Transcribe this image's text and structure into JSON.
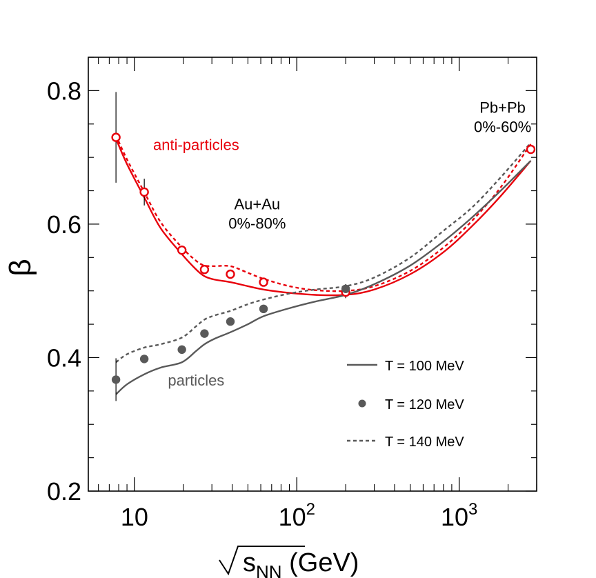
{
  "chart_data": {
    "type": "line",
    "x_scale": "log",
    "xlim": [
      5.2,
      3000
    ],
    "ylim": [
      0.2,
      0.85
    ],
    "xlabel_parts": {
      "root": "√",
      "s": "s",
      "sub": "NN",
      "unit": " (GeV)"
    },
    "ylabel": "β",
    "x_ticks": [
      {
        "value": 10,
        "label": "10",
        "sup": ""
      },
      {
        "value": 100,
        "label": "10",
        "sup": "2"
      },
      {
        "value": 1000,
        "label": "10",
        "sup": "3"
      }
    ],
    "y_ticks": [
      {
        "value": 0.2,
        "label": "0.2"
      },
      {
        "value": 0.4,
        "label": "0.4"
      },
      {
        "value": 0.6,
        "label": "0.6"
      },
      {
        "value": 0.8,
        "label": "0.8"
      }
    ],
    "colors": {
      "particles": "#595959",
      "antiparticles": "#e8000b",
      "axis": "#000000"
    },
    "series": [
      {
        "name": "anti-particles T = 100 MeV",
        "group": "antiparticles",
        "style": "solid",
        "x": [
          7.7,
          9,
          11.5,
          14.5,
          19.6,
          24,
          27,
          31,
          39,
          50,
          62.4,
          90,
          130,
          200,
          300,
          500,
          800,
          1200,
          1800,
          2760
        ],
        "y": [
          0.728,
          0.69,
          0.64,
          0.594,
          0.555,
          0.532,
          0.522,
          0.517,
          0.513,
          0.507,
          0.502,
          0.497,
          0.494,
          0.494,
          0.502,
          0.525,
          0.558,
          0.597,
          0.642,
          0.695
        ]
      },
      {
        "name": "anti-particles T = 140 MeV",
        "group": "antiparticles",
        "style": "dashed",
        "x": [
          7.7,
          9,
          11.5,
          14.5,
          19.6,
          24,
          27,
          31,
          39,
          50,
          62.4,
          90,
          130,
          200,
          300,
          500,
          800,
          1200,
          1800,
          2760
        ],
        "y": [
          0.733,
          0.697,
          0.648,
          0.603,
          0.565,
          0.545,
          0.538,
          0.537,
          0.537,
          0.527,
          0.518,
          0.507,
          0.501,
          0.5,
          0.507,
          0.53,
          0.565,
          0.605,
          0.655,
          0.72
        ]
      },
      {
        "name": "particles T = 100 MeV",
        "group": "particles",
        "style": "solid",
        "x": [
          7.7,
          9,
          11.5,
          14.5,
          19.6,
          24,
          27,
          31,
          39,
          50,
          62.4,
          90,
          130,
          200,
          300,
          500,
          800,
          1200,
          1800,
          2760
        ],
        "y": [
          0.345,
          0.36,
          0.375,
          0.385,
          0.393,
          0.41,
          0.42,
          0.428,
          0.438,
          0.45,
          0.462,
          0.474,
          0.484,
          0.494,
          0.51,
          0.538,
          0.574,
          0.61,
          0.65,
          0.695
        ]
      },
      {
        "name": "particles T = 140 MeV",
        "group": "particles",
        "style": "dashed",
        "x": [
          7.7,
          9,
          11.5,
          14.5,
          19.6,
          24,
          27,
          31,
          39,
          50,
          62.4,
          90,
          130,
          200,
          300,
          500,
          800,
          1200,
          1800,
          2760
        ],
        "y": [
          0.393,
          0.405,
          0.415,
          0.42,
          0.43,
          0.447,
          0.457,
          0.463,
          0.47,
          0.48,
          0.487,
          0.496,
          0.502,
          0.507,
          0.52,
          0.55,
          0.59,
          0.625,
          0.67,
          0.722
        ]
      }
    ],
    "points": [
      {
        "name": "anti-particles T = 120 MeV",
        "group": "antiparticles",
        "marker": "open-circle",
        "x": [
          7.7,
          11.5,
          19.6,
          27,
          39,
          62.4,
          200,
          2760
        ],
        "y": [
          0.73,
          0.648,
          0.561,
          0.532,
          0.525,
          0.513,
          0.498,
          0.712
        ],
        "err": [
          0.068,
          0.02,
          0,
          0,
          0,
          0,
          0.009,
          0
        ]
      },
      {
        "name": "particles T = 120 MeV",
        "group": "particles",
        "marker": "filled-circle",
        "x": [
          7.7,
          11.5,
          19.6,
          27,
          39,
          62.4,
          200
        ],
        "y": [
          0.367,
          0.398,
          0.412,
          0.436,
          0.454,
          0.473,
          0.503
        ],
        "err": [
          0.032,
          0,
          0,
          0,
          0,
          0,
          0.007
        ]
      }
    ],
    "annotations": [
      {
        "id": "antiparticles",
        "lines": [
          "anti-particles"
        ],
        "x": 24,
        "y": 0.711,
        "color_key": "antiparticles",
        "anchor": "middle"
      },
      {
        "id": "particles",
        "lines": [
          "particles"
        ],
        "x": 24,
        "y": 0.358,
        "color_key": "particles",
        "anchor": "middle"
      },
      {
        "id": "auau",
        "lines": [
          "Au+Au",
          "0%-80%"
        ],
        "x": 57,
        "y": 0.622,
        "color_key": "axis",
        "anchor": "middle"
      },
      {
        "id": "pbpb",
        "lines": [
          "Pb+Pb",
          "0%-60%"
        ],
        "x": 1850,
        "y": 0.767,
        "color_key": "axis",
        "anchor": "middle"
      }
    ],
    "legend": {
      "position": "bottom-right",
      "entries": [
        {
          "label": "T = 100 MeV",
          "style": "solid"
        },
        {
          "label": "T = 120 MeV",
          "style": "marker"
        },
        {
          "label": "T = 140 MeV",
          "style": "dashed"
        }
      ]
    }
  }
}
